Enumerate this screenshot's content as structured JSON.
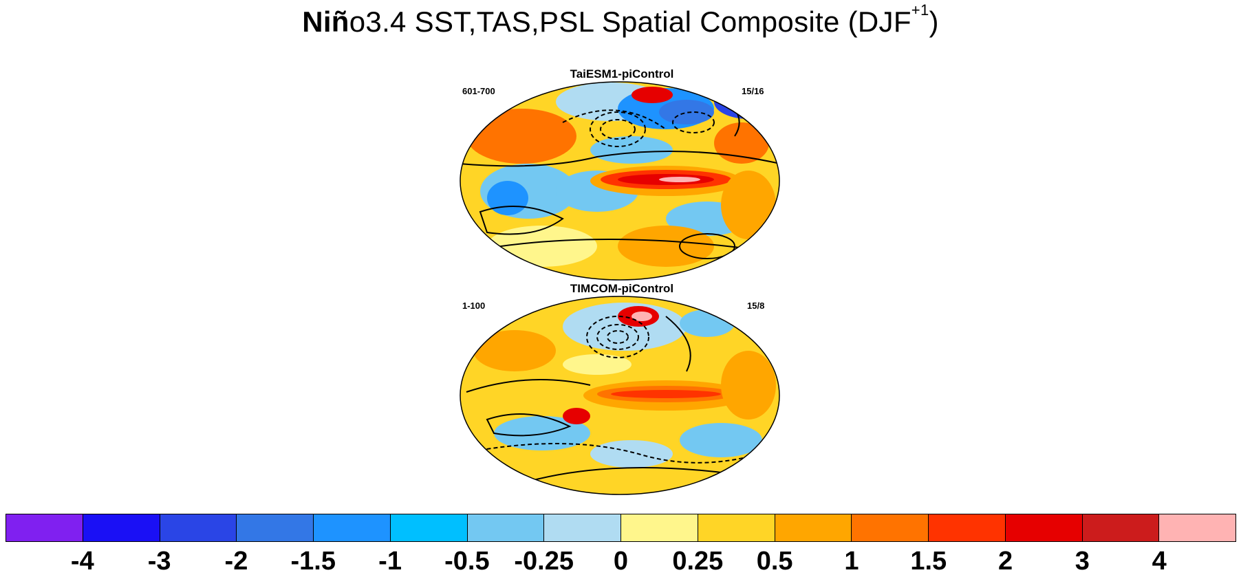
{
  "title": {
    "bold_part": "Niñ",
    "rest": "o3.4 SST,TAS,PSL Spatial Composite (DJF",
    "superscript": "+1",
    "close": ")"
  },
  "panels": [
    {
      "title": "TaiESM1-piControl",
      "left_label": "601-700",
      "right_label": "15/16"
    },
    {
      "title": "TIMCOM-piControl",
      "left_label": "1-100",
      "right_label": "15/8"
    }
  ],
  "colorbar": {
    "colors": [
      "#8020f0",
      "#1a10f5",
      "#2a45e6",
      "#3377e6",
      "#1e93ff",
      "#00bfff",
      "#73c8f2",
      "#b0dcf2",
      "#fff68c",
      "#ffd526",
      "#ffa600",
      "#ff7300",
      "#ff3300",
      "#e60000",
      "#cc1c1c",
      "#ffb3b3"
    ],
    "labels": [
      "-4",
      "-3",
      "-2",
      "-1.5",
      "-1",
      "-0.5",
      "-0.25",
      "0",
      "0.25",
      "0.5",
      "1",
      "1.5",
      "2",
      "3",
      "4"
    ]
  }
}
